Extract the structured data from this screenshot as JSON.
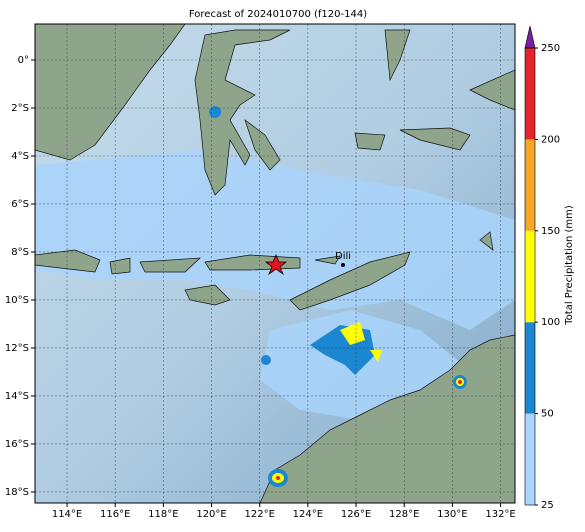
{
  "chart_data": {
    "type": "map",
    "title": "Forecast of 2024010700 (f120-144)",
    "xlim": [
      112.67,
      132.6
    ],
    "ylim": [
      -18.46,
      1.5
    ],
    "xticks": [
      {
        "value": 114,
        "label": "114°E"
      },
      {
        "value": 116,
        "label": "116°E"
      },
      {
        "value": 118,
        "label": "118°E"
      },
      {
        "value": 120,
        "label": "120°E"
      },
      {
        "value": 122,
        "label": "122°E"
      },
      {
        "value": 124,
        "label": "124°E"
      },
      {
        "value": 126,
        "label": "126°E"
      },
      {
        "value": 128,
        "label": "128°E"
      },
      {
        "value": 130,
        "label": "130°E"
      },
      {
        "value": 132,
        "label": "132°E"
      }
    ],
    "yticks": [
      {
        "value": 0,
        "label": "0°"
      },
      {
        "value": -2,
        "label": "2°S"
      },
      {
        "value": -4,
        "label": "4°S"
      },
      {
        "value": -6,
        "label": "6°S"
      },
      {
        "value": -8,
        "label": "8°S"
      },
      {
        "value": -10,
        "label": "10°S"
      },
      {
        "value": -12,
        "label": "12°S"
      },
      {
        "value": -14,
        "label": "14°S"
      },
      {
        "value": -16,
        "label": "16°S"
      },
      {
        "value": -18,
        "label": "18°S"
      }
    ],
    "grid": true,
    "city": "Dili",
    "colorbar": {
      "label": "Total Precipitation (mm)",
      "ticks": [
        25,
        50,
        100,
        150,
        200,
        250
      ],
      "colors": [
        "#a9d4fb",
        "#1b87d1",
        "#ffff00",
        "#f5a623",
        "#e4262c"
      ],
      "over_color": "#7a1fa3"
    }
  }
}
